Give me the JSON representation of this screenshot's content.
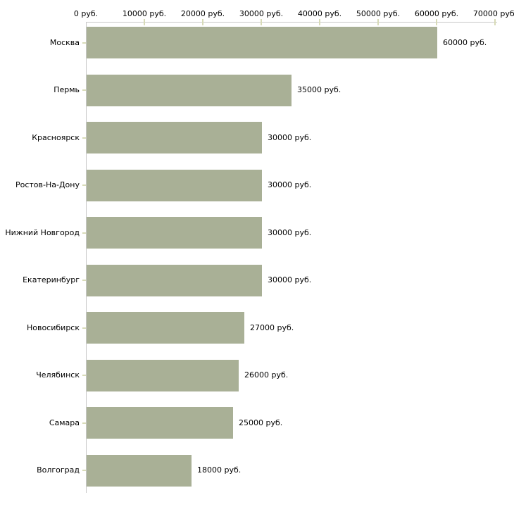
{
  "colors": {
    "bar_fill": "#a9b096",
    "axis_line": "#c8c8c8",
    "tick_mark": "#d8dbb8",
    "text": "#000000",
    "background": "#ffffff"
  },
  "chart_data": {
    "type": "bar",
    "orientation": "horizontal",
    "title": "",
    "xlabel": "",
    "ylabel": "",
    "grid": false,
    "legend": false,
    "categories": [
      "Москва",
      "Пермь",
      "Красноярск",
      "Ростов-На-Дону",
      "Нижний Новгород",
      "Екатеринбург",
      "Новосибирск",
      "Челябинск",
      "Самара",
      "Волгоград"
    ],
    "values": [
      60000,
      35000,
      30000,
      30000,
      30000,
      30000,
      27000,
      26000,
      25000,
      18000
    ],
    "value_labels": [
      "60000 руб.",
      "35000 руб.",
      "30000 руб.",
      "30000 руб.",
      "30000 руб.",
      "30000 руб.",
      "27000 руб.",
      "26000 руб.",
      "25000 руб.",
      "18000 руб."
    ],
    "x_axis": {
      "position": "top",
      "min": 0,
      "max": 70000,
      "tick_step": 10000,
      "tick_values": [
        0,
        10000,
        20000,
        30000,
        40000,
        50000,
        60000,
        70000
      ],
      "tick_labels": [
        "0 руб.",
        "10000 руб.",
        "20000 руб.",
        "30000 руб.",
        "40000 руб.",
        "50000 руб.",
        "60000 руб.",
        "70000 руб."
      ]
    }
  }
}
